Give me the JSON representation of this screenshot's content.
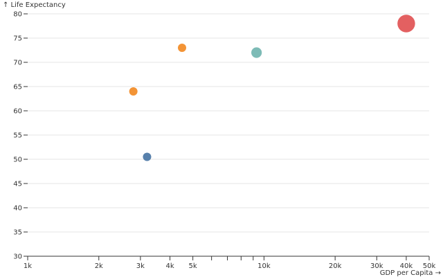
{
  "chart_data": {
    "type": "scatter",
    "title": "",
    "xlabel": "GDP per Capita →",
    "ylabel": "↑ Life Expectancy",
    "x_scale": "log",
    "xlim": [
      1000,
      50000
    ],
    "ylim": [
      30,
      80
    ],
    "grid": {
      "horizontal": true,
      "vertical": false
    },
    "x_ticks": [
      {
        "value": 1000,
        "label": "1k"
      },
      {
        "value": 2000,
        "label": "2k"
      },
      {
        "value": 3000,
        "label": "3k"
      },
      {
        "value": 4000,
        "label": "4k"
      },
      {
        "value": 5000,
        "label": "5k"
      },
      {
        "value": 6000,
        "label": ""
      },
      {
        "value": 7000,
        "label": ""
      },
      {
        "value": 8000,
        "label": ""
      },
      {
        "value": 9000,
        "label": ""
      },
      {
        "value": 10000,
        "label": "10k"
      },
      {
        "value": 20000,
        "label": "20k"
      },
      {
        "value": 30000,
        "label": "30k"
      },
      {
        "value": 40000,
        "label": "40k"
      },
      {
        "value": 50000,
        "label": "50k"
      }
    ],
    "y_ticks": [
      {
        "value": 30,
        "label": "30"
      },
      {
        "value": 35,
        "label": "35"
      },
      {
        "value": 40,
        "label": "40"
      },
      {
        "value": 45,
        "label": "45"
      },
      {
        "value": 50,
        "label": "50"
      },
      {
        "value": 55,
        "label": "55"
      },
      {
        "value": 60,
        "label": "60"
      },
      {
        "value": 65,
        "label": "65"
      },
      {
        "value": 70,
        "label": "70"
      },
      {
        "value": 75,
        "label": "75"
      },
      {
        "value": 80,
        "label": "80"
      }
    ],
    "points": [
      {
        "x": 2800,
        "y": 64,
        "size": 1.0,
        "color": "#f28e2b"
      },
      {
        "x": 4500,
        "y": 73,
        "size": 1.0,
        "color": "#f28e2b"
      },
      {
        "x": 3200,
        "y": 50.5,
        "size": 1.0,
        "color": "#4e79a7"
      },
      {
        "x": 9300,
        "y": 72,
        "size": 1.6,
        "color": "#76b7b2"
      },
      {
        "x": 40000,
        "y": 78,
        "size": 4.5,
        "color": "#e15759"
      }
    ]
  }
}
